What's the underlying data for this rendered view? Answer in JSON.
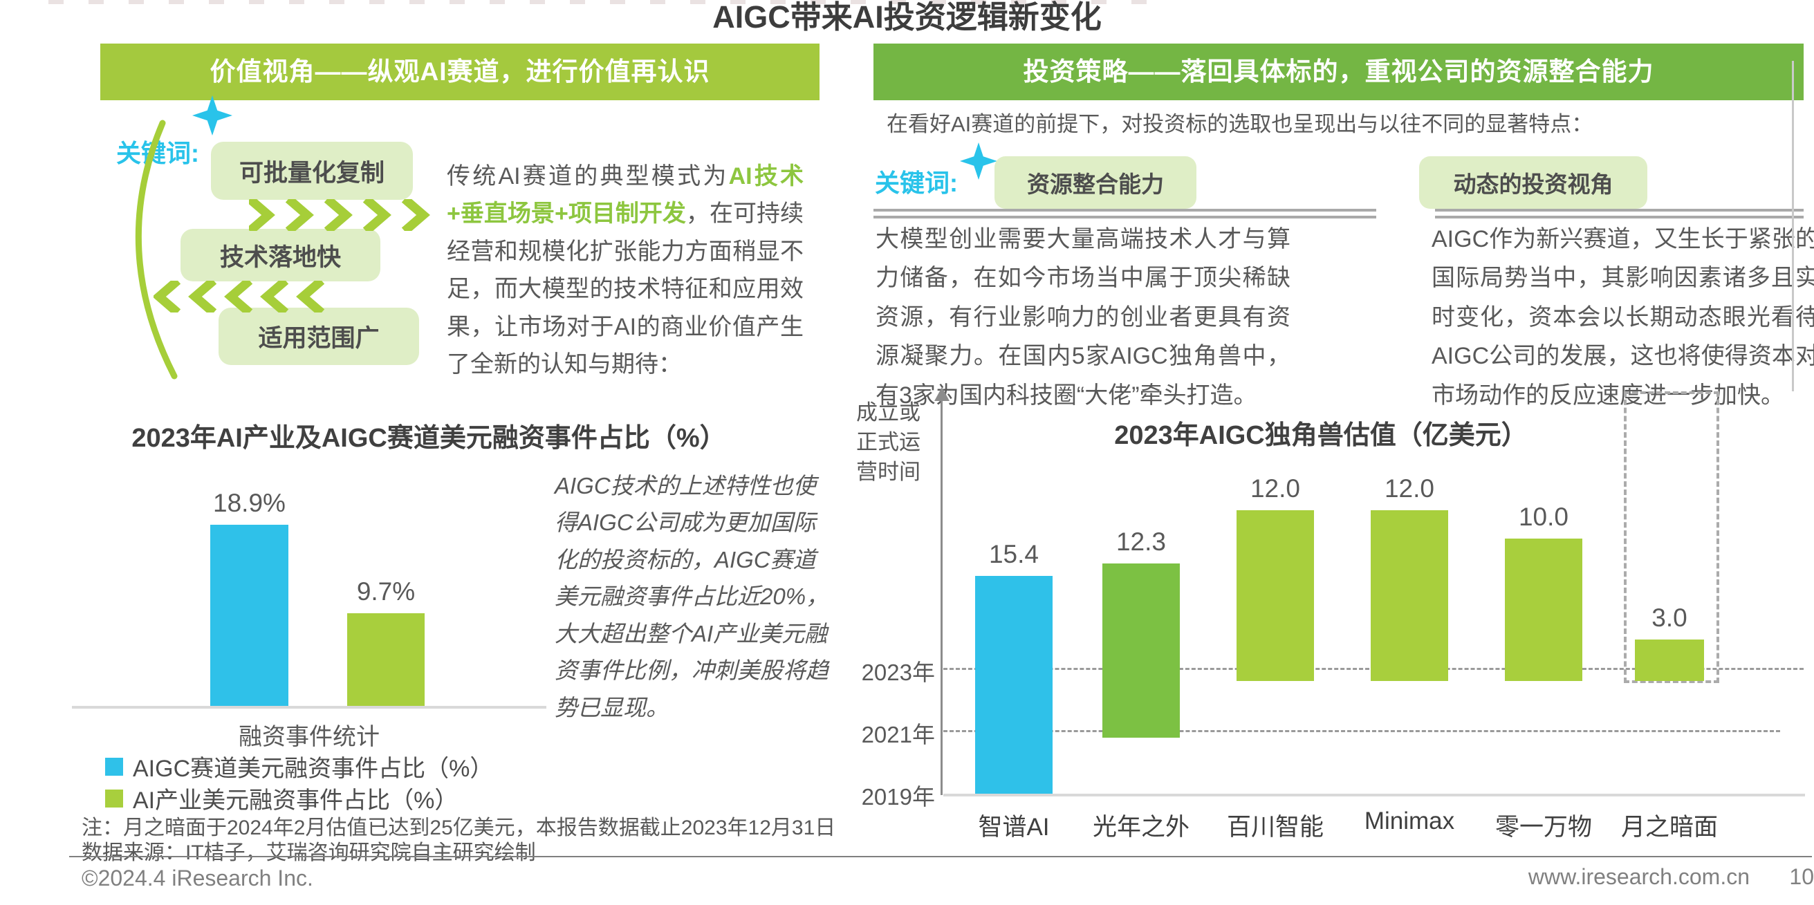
{
  "page": {
    "title": "AIGC带来AI投资逻辑新变化",
    "notes": [
      "注：月之暗面于2024年2月估值已达到25亿美元，本报告数据截止2023年12月31日",
      "数据来源：IT桔子，艾瑞咨询研究院自主研究绘制"
    ],
    "copyright": "©2024.4 iResearch Inc.",
    "website": "www.iresearch.com.cn",
    "page_number": "10"
  },
  "colors": {
    "accent_cyan": "#29c3ea",
    "bar_cyan": "#2fc1e9",
    "green_light": "#a8cf3d",
    "green_mid": "#7cc143",
    "header_left_bg": "#a4c93e",
    "header_right_bg": "#74b644",
    "keyword_box_bg": "#dfeec6",
    "highlight_green_text": "#8dc63f",
    "text_gray": "#595959",
    "title_dark": "#3d3d3d"
  },
  "left_panel": {
    "header": "价值视角——纵观AI赛道，进行价值再认识",
    "keyword_label": "关键词:",
    "keywords": [
      "可批量化复制",
      "技术落地快",
      "适用范围广"
    ],
    "para_prefix": "传统AI赛道的典型模式为",
    "para_highlight": "AI技术+垂直场景+项目制开发",
    "para_suffix": "，在可持续经营和规模化扩张能力方面稍显不足，而大模型的技术特征和应用效果，让市场对于AI的商业价值产生了全新的认知与期待：",
    "italic_note": "AIGC技术的上述特性也使得AIGC公司成为更加国际化的投资标的，AIGC赛道美元融资事件占比近20%，大大超出整个AI产业美元融资事件比例，冲刺美股将趋势已显现。"
  },
  "right_panel": {
    "header": "投资策略——落回具体标的，重视公司的资源整合能力",
    "intro": "在看好AI赛道的前提下，对投资标的选取也呈现出与以往不同的显著特点：",
    "keyword_label": "关键词:",
    "keywords": [
      "资源整合能力",
      "动态的投资视角"
    ],
    "para_left": "大模型创业需要大量高端技术人才与算力储备，在如今市场当中属于顶尖稀缺资源，有行业影响力的创业者更具有资源凝聚力。在国内5家AIGC独角兽中，有3家为国内科技圈“大佬”牵头打造。",
    "para_right": "AIGC作为新兴赛道，又生长于紧张的国际局势当中，其影响因素诸多且实时变化，资本会以长期动态眼光看待AIGC公司的发展，这也将使得资本对市场动作的反应速度进一步加快。"
  },
  "chart_data": [
    {
      "type": "bar",
      "title": "2023年AI产业及AIGC赛道美元融资事件占比（%）",
      "categories": [
        "融资事件统计"
      ],
      "series": [
        {
          "name": "AIGC赛道美元融资事件占比（%）",
          "values": [
            18.9
          ],
          "color": "#2fc1e9"
        },
        {
          "name": "AI产业美元融资事件占比（%）",
          "values": [
            9.7
          ],
          "color": "#a8cf3d"
        }
      ],
      "value_labels": [
        "18.9%",
        "9.7%"
      ],
      "xlabel": "融资事件统计",
      "ylim": [
        0,
        20
      ],
      "grid": false,
      "legend_position": "bottom-left"
    },
    {
      "type": "bar",
      "title": "2023年AIGC独角兽估值（亿美元）",
      "ylabel": "成立或正式运营时间",
      "y_ticks": [
        "2023年",
        "2021年",
        "2019年"
      ],
      "categories": [
        "智谱AI",
        "光年之外",
        "百川智能",
        "Minimax",
        "零一万物",
        "月之暗面"
      ],
      "values": [
        15.4,
        12.3,
        12.0,
        12.0,
        10.0,
        3.0
      ],
      "value_labels": [
        "15.4",
        "12.3",
        "12.0",
        "12.0",
        "10.0",
        "3.0"
      ],
      "founded_year_approx": [
        2019,
        2021,
        2023,
        2023,
        2023,
        2023
      ],
      "bar_colors": [
        "#2fc1e9",
        "#7cc143",
        "#a8cf3d",
        "#a8cf3d",
        "#a8cf3d",
        "#a8cf3d"
      ],
      "highlighted_category": "月之暗面",
      "highlight_style": "dashed-box",
      "grid": "dashed-horizontal",
      "note_on_geometry": "bar base aligns with founding / official operation year on the time axis"
    }
  ]
}
